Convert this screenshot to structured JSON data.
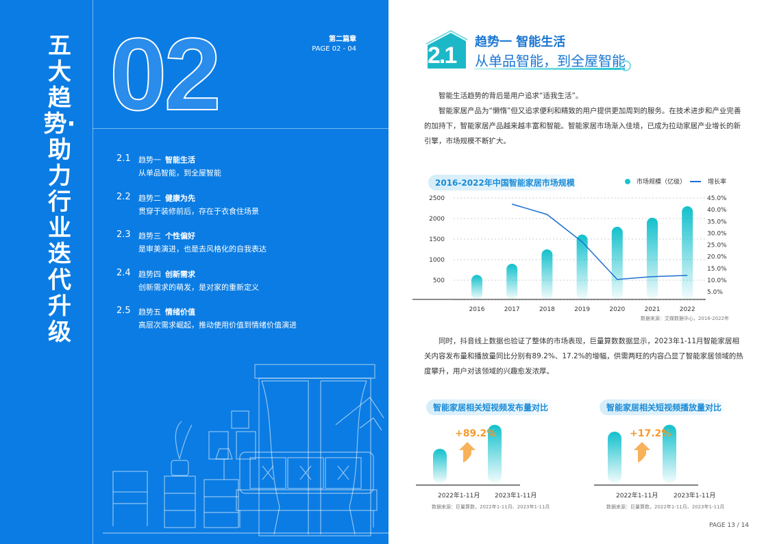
{
  "left": {
    "vertical_title": "五大趋势·助力行业迭代升级",
    "chapter_number": "02",
    "chapter_label": "第二篇章",
    "page_range": "PAGE  02 - 04",
    "toc": [
      {
        "num": "2.1",
        "trend": "趋势一",
        "title": "智能生活",
        "subtitle": "从单品智能，到全屋智能"
      },
      {
        "num": "2.2",
        "trend": "趋势二",
        "title": "健康为先",
        "subtitle": "贯穿于装修前后，存在于衣食住场景"
      },
      {
        "num": "2.3",
        "trend": "趋势三",
        "title": "个性偏好",
        "subtitle": "是审美演进，也是去风格化的自我表达"
      },
      {
        "num": "2.4",
        "trend": "趋势四",
        "title": "创新需求",
        "subtitle": "创新需求的萌发，是对家的重新定义"
      },
      {
        "num": "2.5",
        "trend": "趋势五",
        "title": "情绪价值",
        "subtitle": "高层次需求崛起，推动使用价值到情绪价值演进"
      }
    ]
  },
  "right": {
    "section_badge": "2.1",
    "heading": "趋势一 智能生活",
    "subheading": "从单品智能，到全屋智能",
    "paragraphs": [
      "智能生活趋势的背后是用户追求“适我生活”。",
      "智能家居产品为“懒惰”但又追求便利和精致的用户提供更加周到的服务。在技术进步和产业完善的加持下，智能家居产品越来越丰富和智能。智能家居市场渐入佳境，已成为拉动家居产业增长的新引擎，市场规模不断扩大。"
    ],
    "paragraph2": "同时，抖音线上数据也验证了整体的市场表现，巨量算数数据显示，2023年1-11月智能家居相关内容发布量和播放量同比分别有89.2%、17.2%的增幅，供需两旺的内容凸显了智能家居领域的热度攀升，用户对该领域的兴趣愈发浓厚。",
    "page_footer": "PAGE 13 / 14"
  },
  "colors": {
    "blue": "#0b7ce3",
    "teal": "#1cc3cf",
    "line": "#1a6fd1",
    "orange": "#f59a2c"
  },
  "chart_data": [
    {
      "type": "bar+line",
      "title": "2016-2022年中国智能家居市场规模",
      "categories": [
        "2016",
        "2017",
        "2018",
        "2019",
        "2020",
        "2021",
        "2022"
      ],
      "series": [
        {
          "name": "市场规模（亿级）",
          "type": "bar",
          "axis": "left",
          "values": [
            630,
            900,
            1250,
            1610,
            1800,
            2020,
            2300
          ]
        },
        {
          "name": "增长率",
          "type": "line",
          "axis": "right",
          "values": [
            null,
            42.4,
            38.0,
            26.3,
            10.3,
            11.5,
            12.0
          ]
        }
      ],
      "y_left_ticks": [
        "500",
        "1000",
        "1500",
        "2000",
        "2500"
      ],
      "y_left_range": [
        0,
        2500
      ],
      "y_right_ticks": [
        "5.0%",
        "10.0%",
        "15.0%",
        "20.0%",
        "25.0%",
        "30.0%",
        "35.0%",
        "40.0%",
        "45.0%"
      ],
      "y_right_range": [
        0,
        45
      ],
      "legend": "top-right",
      "grid": true,
      "source": "数据来源：艾媒数据中心，2016-2022年"
    },
    {
      "type": "bar",
      "title": "智能家居相关短视频发布量对比",
      "categories": [
        "2022年1-11月",
        "2023年1-11月"
      ],
      "values": [
        100,
        189.2
      ],
      "annotation": "+89.2%",
      "source": "数据来源：巨量算数，2022年1-11月、2023年1-11月"
    },
    {
      "type": "bar",
      "title": "智能家居相关短视频播放量对比",
      "categories": [
        "2022年1-11月",
        "2023年1-11月"
      ],
      "values": [
        100,
        117.2
      ],
      "annotation": "+17.2%",
      "source": "数据来源：巨量算数，2022年1-11月、2023年1-11月"
    }
  ]
}
